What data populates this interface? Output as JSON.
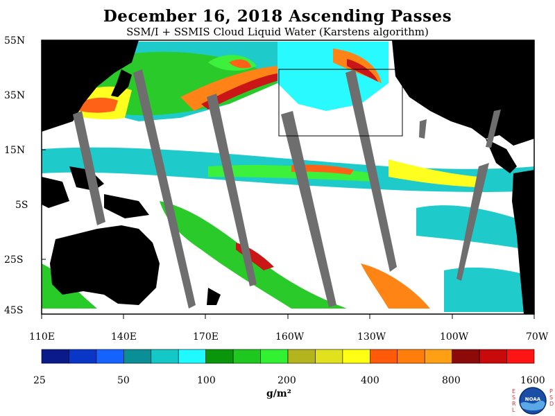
{
  "header": {
    "title": "December 16, 2018  Ascending Passes",
    "subtitle": "SSM/I + SSMIS Cloud Liquid Water (Karstens algorithm)"
  },
  "map": {
    "latitude_labels": [
      "55N",
      "35N",
      "15N",
      "5S",
      "25S",
      "45S"
    ],
    "longitude_labels": [
      "110E",
      "140E",
      "170E",
      "160W",
      "130W",
      "100W",
      "70W"
    ],
    "missing_swath_color": "#6e6e6e",
    "land_color": "#000000",
    "ocean_clear_color": "#ffffff"
  },
  "colorbar": {
    "colors": [
      "#0a1a8a",
      "#0a36c8",
      "#1463ff",
      "#0a8f96",
      "#14c8c8",
      "#1efaff",
      "#0a960a",
      "#1ec81e",
      "#32f032",
      "#b4b41e",
      "#e1e11e",
      "#ffff14",
      "#ff5a0a",
      "#ff7d0a",
      "#ffa014",
      "#8c0a0a",
      "#c80a0a",
      "#ff1414"
    ],
    "tick_labels": [
      "25",
      "50",
      "100",
      "200",
      "400",
      "800",
      "1600"
    ],
    "unit_label": "g/m²"
  },
  "logo": {
    "left_text": "ESRL",
    "right_text": "PSD",
    "emblem_text": "NOAA"
  }
}
